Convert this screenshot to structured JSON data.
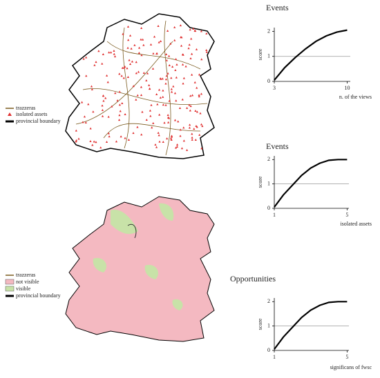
{
  "maps": [
    {
      "legend": [
        "trazzeras",
        "isolated assets",
        "provincial boundary"
      ]
    },
    {
      "legend": [
        "trazzeras",
        "not visible",
        "visible",
        "provincial boundary"
      ]
    }
  ],
  "chart_data": [
    {
      "type": "line",
      "title": "Events",
      "xlabel": "n. of the views",
      "ylabel": "score",
      "x": [
        3,
        4,
        5,
        6,
        7,
        8,
        9,
        10
      ],
      "series": [
        {
          "color": "#000000",
          "values": [
            0.05,
            0.55,
            0.95,
            1.3,
            1.6,
            1.82,
            1.97,
            2.05
          ]
        }
      ],
      "reference_line": 1,
      "reference_color": "#999999",
      "xlim": [
        3,
        10.3
      ],
      "ylim": [
        0,
        2.15
      ],
      "xticks": [
        3,
        10
      ],
      "yticks": [
        0,
        1,
        2
      ]
    },
    {
      "type": "line",
      "title": "Events",
      "xlabel": "isolated assets",
      "ylabel": "score",
      "x": [
        1,
        1.5,
        2,
        2.5,
        3,
        3.5,
        4,
        4.5,
        5
      ],
      "series": [
        {
          "color": "#000000",
          "values": [
            0.05,
            0.55,
            0.95,
            1.35,
            1.65,
            1.85,
            1.97,
            2.0,
            2.0
          ]
        }
      ],
      "reference_line": 1,
      "reference_color": "#999999",
      "xlim": [
        1,
        5.1
      ],
      "ylim": [
        0,
        2.15
      ],
      "xticks": [
        1,
        5
      ],
      "yticks": [
        0,
        1,
        2
      ]
    },
    {
      "type": "line",
      "title": "Opportunities",
      "xlabel": "significans of fwsc",
      "ylabel": "score",
      "x": [
        1,
        1.5,
        2,
        2.5,
        3,
        3.5,
        4,
        4.5,
        5
      ],
      "series": [
        {
          "color": "#000000",
          "values": [
            0.05,
            0.55,
            0.95,
            1.35,
            1.65,
            1.85,
            1.97,
            2.0,
            2.0
          ]
        }
      ],
      "reference_line": 1,
      "reference_color": "#999999",
      "xlim": [
        1,
        5.1
      ],
      "ylim": [
        0,
        2.15
      ],
      "xticks": [
        1,
        5
      ],
      "yticks": [
        0,
        1,
        2
      ]
    }
  ]
}
